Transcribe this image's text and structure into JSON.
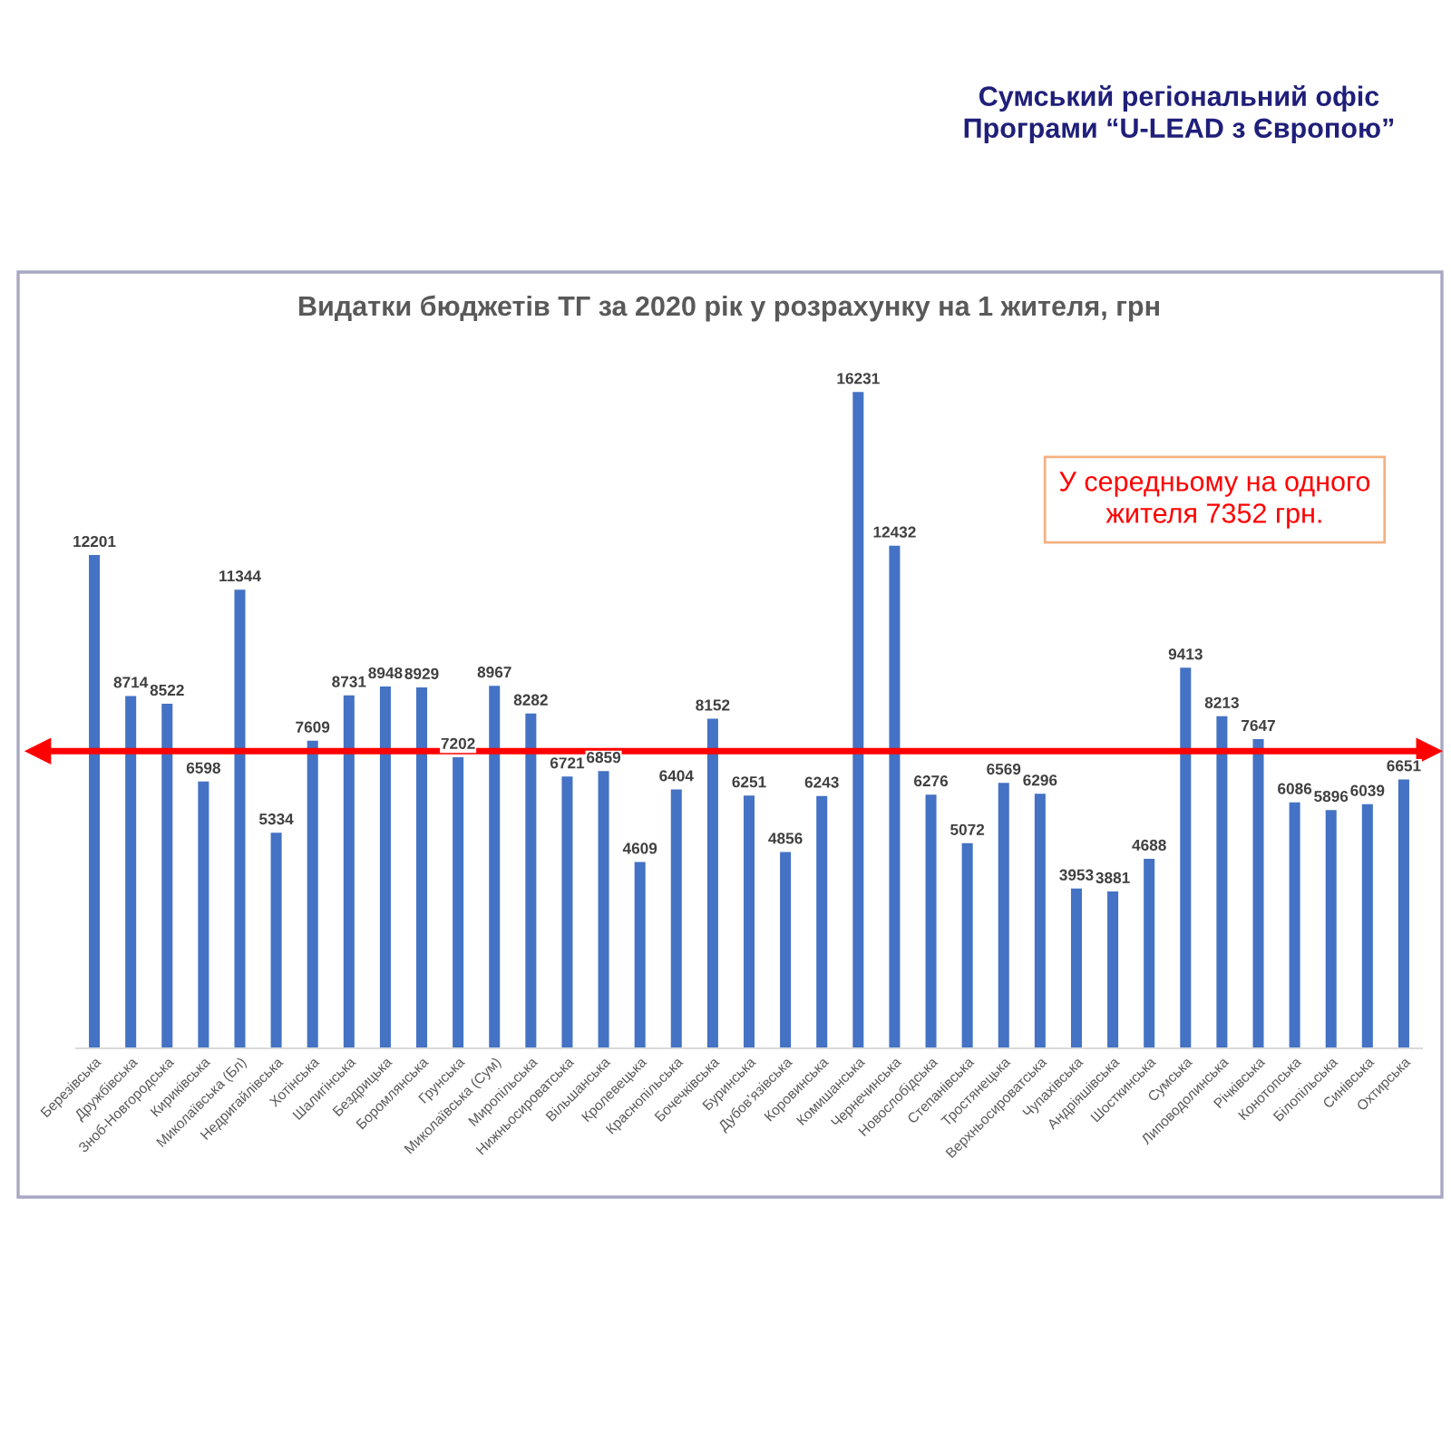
{
  "chart_data": {
    "type": "bar",
    "title": "Видатки бюджетів ТГ за 2020 рік у розрахунку на 1 жителя, грн",
    "categories": [
      "Березівська",
      "Дружбівська",
      "Зноб-Новгородська",
      "Кириківська",
      "Миколаївська (Бл)",
      "Недригайлівська",
      "Хотінська",
      "Шалигінська",
      "Бездрицька",
      "Боромлянська",
      "Грунська",
      "Миколаївська (Сум)",
      "Миропільська",
      "Нижньосироватська",
      "Вільшанська",
      "Кролевецька",
      "Краснопільська",
      "Бочечківська",
      "Буринська",
      "Дубов’язівська",
      "Коровинська",
      "Комишанська",
      "Чернечинська",
      "Новослобідська",
      "Степанівська",
      "Тростянецька",
      "Верхньосироватська",
      "Чупахівська",
      "Андріяшівська",
      "Шосткинська",
      "Сумська",
      "Липоводолинська",
      "Річківська",
      "Конотопська",
      "Білопільська",
      "Синівська",
      "Охтирська"
    ],
    "values": [
      12201,
      8714,
      8522,
      6598,
      11344,
      5334,
      7609,
      8731,
      8948,
      8929,
      7202,
      8967,
      8282,
      6721,
      6859,
      4609,
      6404,
      8152,
      6251,
      4856,
      6243,
      16231,
      12432,
      6276,
      5072,
      6569,
      6296,
      3953,
      3881,
      4688,
      9413,
      8213,
      7647,
      6086,
      5896,
      6039,
      6651
    ],
    "color": "#4472c4",
    "data_labels": true,
    "ref_lines": [
      {
        "axis": "y",
        "value": 7352,
        "label": "У середньому на одного\nжителя 7352 грн.",
        "color": "#ff0000"
      }
    ],
    "annotations": [
      "Сумський регіональний офіс\nПрограми “U-LEAD з Європою”"
    ]
  }
}
